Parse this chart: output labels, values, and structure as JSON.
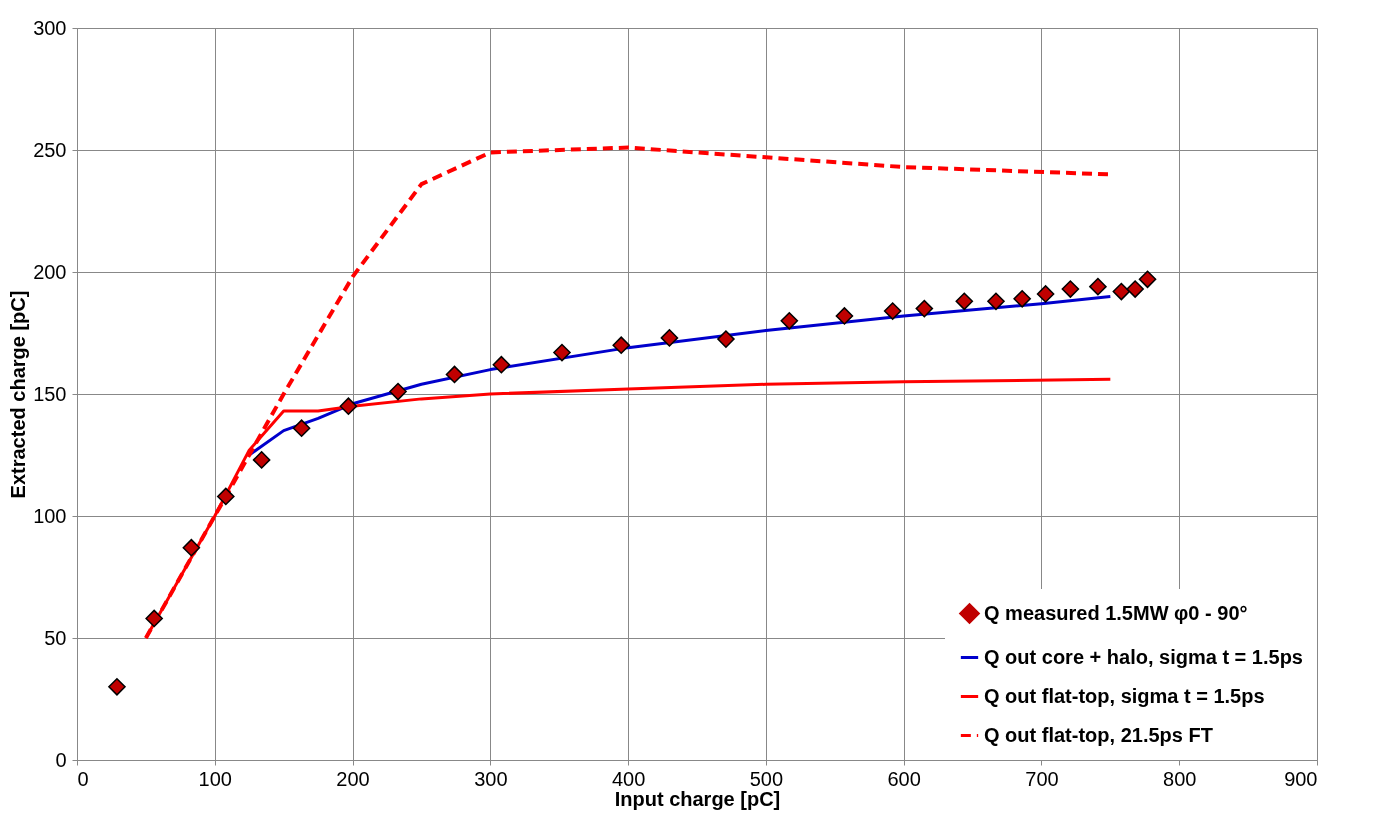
{
  "chart_data": {
    "type": "line",
    "xlabel": "Input charge [pC]",
    "ylabel": "Extracted charge [pC]",
    "xlim": [
      0,
      900
    ],
    "xticks": [
      0,
      100,
      200,
      300,
      400,
      500,
      600,
      700,
      800,
      900
    ],
    "ylim": [
      0,
      300
    ],
    "yticks": [
      0,
      50,
      100,
      150,
      200,
      250,
      300
    ],
    "grid": true,
    "legend": "bottom right",
    "series": [
      {
        "name": "Q measured 1.5MW φ0 - 90°",
        "type": "scatter",
        "marker": "diamond",
        "color": "#c00000",
        "x": [
          29,
          56,
          83,
          108,
          134,
          163,
          197,
          233,
          274,
          308,
          352,
          395,
          430,
          471,
          517,
          557,
          592,
          615,
          644,
          667,
          686,
          703,
          721,
          741,
          758,
          768,
          777
        ],
        "values": [
          30,
          58,
          87,
          108,
          123,
          136,
          145,
          151,
          158,
          162,
          167,
          170,
          173,
          172.5,
          180,
          182,
          184,
          185,
          188,
          188,
          189,
          191,
          193,
          194,
          192,
          193,
          197
        ]
      },
      {
        "name": "Q out core + halo, sigma t = 1.5ps",
        "type": "line",
        "line_style": "solid",
        "color": "#0000cc",
        "x": [
          125,
          150,
          175,
          200,
          250,
          300,
          400,
          500,
          600,
          700,
          750
        ],
        "values": [
          125,
          135,
          140,
          146,
          154,
          160,
          169,
          176,
          182,
          187,
          190
        ]
      },
      {
        "name": "Q out flat-top, sigma t = 1.5ps",
        "type": "line",
        "line_style": "solid",
        "color": "#ff0000",
        "x": [
          50,
          75,
          100,
          125,
          150,
          175,
          200,
          250,
          300,
          400,
          500,
          600,
          750
        ],
        "values": [
          50,
          75,
          100,
          127,
          143,
          143,
          145,
          148,
          150,
          152,
          154,
          155,
          156
        ]
      },
      {
        "name": "Q out flat-top, 21.5ps FT",
        "type": "line",
        "line_style": "dashed",
        "color": "#ff0000",
        "x": [
          50,
          100,
          125,
          150,
          200,
          250,
          300,
          400,
          500,
          600,
          750
        ],
        "values": [
          50,
          100,
          125,
          150,
          198,
          236,
          249,
          251,
          247,
          243,
          240
        ]
      }
    ]
  }
}
